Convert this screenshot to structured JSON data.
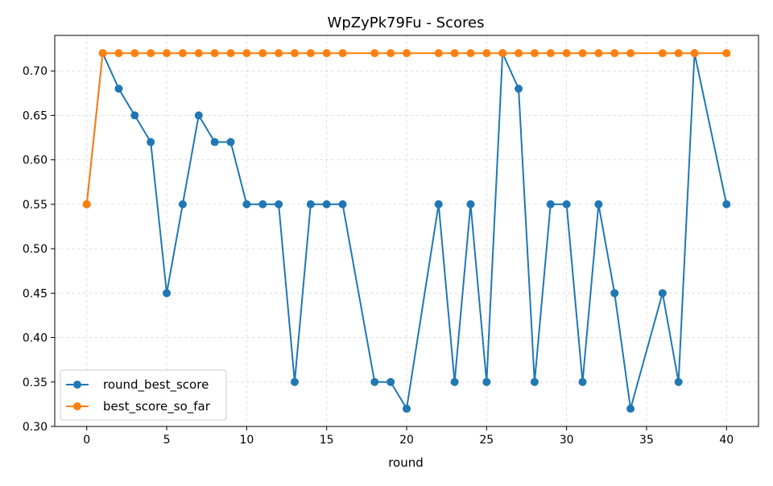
{
  "chart_data": {
    "type": "line",
    "title": "WpZyPk79Fu - Scores",
    "xlabel": "round",
    "ylabel": "",
    "xlim": [
      -2,
      42
    ],
    "ylim": [
      0.3,
      0.74
    ],
    "xticks": [
      0,
      5,
      10,
      15,
      20,
      25,
      30,
      35,
      40
    ],
    "yticks": [
      0.3,
      0.35,
      0.4,
      0.45,
      0.5,
      0.55,
      0.6,
      0.65,
      0.7
    ],
    "xtick_labels": [
      "0",
      "5",
      "10",
      "15",
      "20",
      "25",
      "30",
      "35",
      "40"
    ],
    "ytick_labels": [
      "0.30",
      "0.35",
      "0.40",
      "0.45",
      "0.50",
      "0.55",
      "0.60",
      "0.65",
      "0.70"
    ],
    "grid": true,
    "legend_position": "lower-left",
    "series": [
      {
        "name": "round_best_score",
        "color": "#1f77b4",
        "x": [
          0,
          1,
          2,
          3,
          4,
          5,
          6,
          7,
          8,
          9,
          10,
          11,
          12,
          13,
          14,
          15,
          16,
          18,
          19,
          20,
          22,
          23,
          24,
          25,
          26,
          27,
          28,
          29,
          30,
          31,
          32,
          33,
          34,
          36,
          37,
          38,
          40
        ],
        "values": [
          0.55,
          0.72,
          0.68,
          0.65,
          0.62,
          0.45,
          0.55,
          0.65,
          0.62,
          0.62,
          0.55,
          0.55,
          0.55,
          0.35,
          0.55,
          0.55,
          0.55,
          0.35,
          0.35,
          0.32,
          0.55,
          0.35,
          0.55,
          0.35,
          0.72,
          0.68,
          0.35,
          0.55,
          0.55,
          0.35,
          0.55,
          0.45,
          0.32,
          0.45,
          0.35,
          0.72,
          0.55
        ]
      },
      {
        "name": "best_score_so_far",
        "color": "#ff7f0e",
        "x": [
          0,
          1,
          2,
          3,
          4,
          5,
          6,
          7,
          8,
          9,
          10,
          11,
          12,
          13,
          14,
          15,
          16,
          18,
          19,
          20,
          22,
          23,
          24,
          25,
          26,
          27,
          28,
          29,
          30,
          31,
          32,
          33,
          34,
          36,
          37,
          38,
          40
        ],
        "values": [
          0.55,
          0.72,
          0.72,
          0.72,
          0.72,
          0.72,
          0.72,
          0.72,
          0.72,
          0.72,
          0.72,
          0.72,
          0.72,
          0.72,
          0.72,
          0.72,
          0.72,
          0.72,
          0.72,
          0.72,
          0.72,
          0.72,
          0.72,
          0.72,
          0.72,
          0.72,
          0.72,
          0.72,
          0.72,
          0.72,
          0.72,
          0.72,
          0.72,
          0.72,
          0.72,
          0.72,
          0.72
        ]
      }
    ]
  }
}
